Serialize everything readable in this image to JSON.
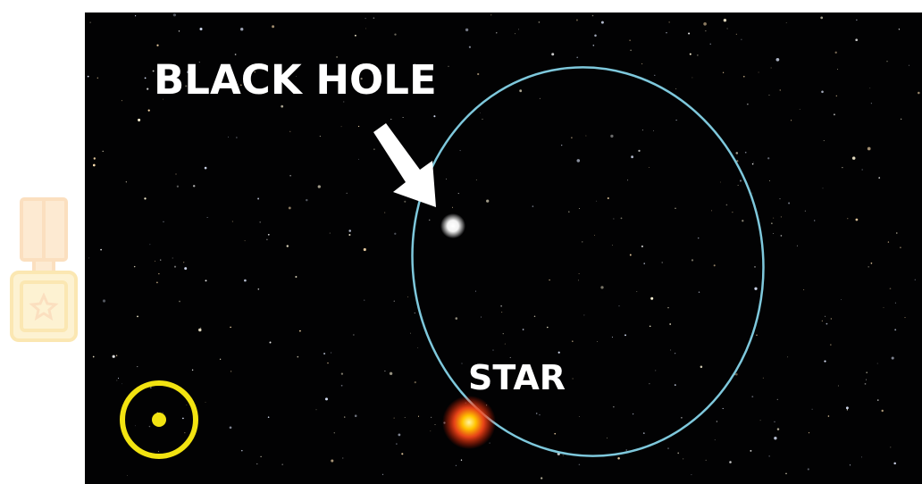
{
  "labels": {
    "black_hole": "BLACK HOLE",
    "star": "STAR"
  }
}
